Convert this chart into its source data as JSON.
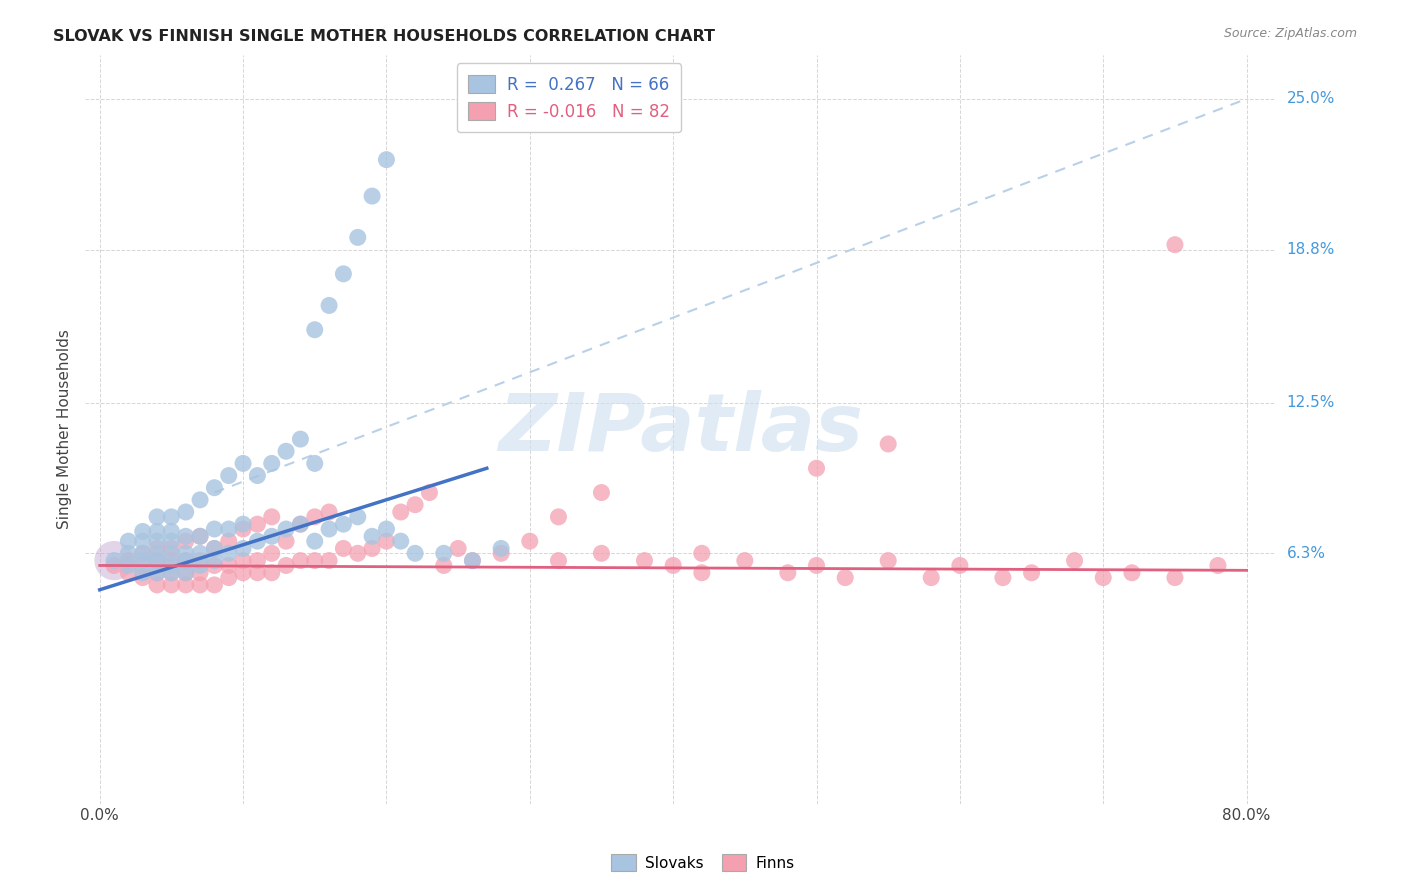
{
  "title": "SLOVAK VS FINNISH SINGLE MOTHER HOUSEHOLDS CORRELATION CHART",
  "source": "Source: ZipAtlas.com",
  "ylabel": "Single Mother Households",
  "ytick_labels": [
    "6.3%",
    "12.5%",
    "18.8%",
    "25.0%"
  ],
  "ytick_values": [
    0.063,
    0.125,
    0.188,
    0.25
  ],
  "xlim": [
    -0.01,
    0.82
  ],
  "ylim": [
    -0.04,
    0.268
  ],
  "legend_slovak": "R =  0.267   N = 66",
  "legend_finn": "R = -0.016   N = 82",
  "slovak_color": "#a8c4e0",
  "finn_color": "#f4a0b0",
  "slovak_line_color": "#4472c4",
  "finn_line_color": "#e06080",
  "dash_line_color": "#b8d0e8",
  "watermark_color": "#ccdff0",
  "sk_x": [
    0.01,
    0.02,
    0.02,
    0.02,
    0.03,
    0.03,
    0.03,
    0.03,
    0.03,
    0.04,
    0.04,
    0.04,
    0.04,
    0.04,
    0.04,
    0.05,
    0.05,
    0.05,
    0.05,
    0.05,
    0.05,
    0.06,
    0.06,
    0.06,
    0.06,
    0.06,
    0.07,
    0.07,
    0.07,
    0.07,
    0.08,
    0.08,
    0.08,
    0.08,
    0.09,
    0.09,
    0.09,
    0.1,
    0.1,
    0.1,
    0.11,
    0.11,
    0.12,
    0.12,
    0.13,
    0.13,
    0.14,
    0.14,
    0.15,
    0.15,
    0.16,
    0.17,
    0.18,
    0.19,
    0.2,
    0.21,
    0.22,
    0.24,
    0.26,
    0.28,
    0.15,
    0.16,
    0.17,
    0.18,
    0.19,
    0.2
  ],
  "sk_y": [
    0.06,
    0.058,
    0.063,
    0.068,
    0.055,
    0.06,
    0.063,
    0.068,
    0.072,
    0.055,
    0.06,
    0.063,
    0.068,
    0.072,
    0.078,
    0.055,
    0.058,
    0.063,
    0.068,
    0.072,
    0.078,
    0.055,
    0.06,
    0.063,
    0.07,
    0.08,
    0.058,
    0.063,
    0.07,
    0.085,
    0.06,
    0.065,
    0.073,
    0.09,
    0.063,
    0.073,
    0.095,
    0.065,
    0.075,
    0.1,
    0.068,
    0.095,
    0.07,
    0.1,
    0.073,
    0.105,
    0.075,
    0.11,
    0.068,
    0.1,
    0.073,
    0.075,
    0.078,
    0.07,
    0.073,
    0.068,
    0.063,
    0.063,
    0.06,
    0.065,
    0.155,
    0.165,
    0.178,
    0.193,
    0.21,
    0.225
  ],
  "fi_x": [
    0.01,
    0.02,
    0.02,
    0.03,
    0.03,
    0.03,
    0.04,
    0.04,
    0.04,
    0.04,
    0.05,
    0.05,
    0.05,
    0.05,
    0.06,
    0.06,
    0.06,
    0.06,
    0.07,
    0.07,
    0.07,
    0.07,
    0.08,
    0.08,
    0.08,
    0.09,
    0.09,
    0.09,
    0.1,
    0.1,
    0.1,
    0.11,
    0.11,
    0.11,
    0.12,
    0.12,
    0.12,
    0.13,
    0.13,
    0.14,
    0.14,
    0.15,
    0.15,
    0.16,
    0.16,
    0.17,
    0.18,
    0.19,
    0.2,
    0.21,
    0.22,
    0.23,
    0.24,
    0.25,
    0.26,
    0.28,
    0.3,
    0.32,
    0.35,
    0.38,
    0.4,
    0.42,
    0.45,
    0.48,
    0.5,
    0.52,
    0.55,
    0.58,
    0.6,
    0.63,
    0.65,
    0.68,
    0.7,
    0.72,
    0.75,
    0.78,
    0.5,
    0.55,
    0.32,
    0.35,
    0.42,
    0.75
  ],
  "fi_y": [
    0.058,
    0.055,
    0.06,
    0.053,
    0.058,
    0.063,
    0.05,
    0.055,
    0.06,
    0.065,
    0.05,
    0.055,
    0.06,
    0.065,
    0.05,
    0.055,
    0.06,
    0.068,
    0.05,
    0.055,
    0.06,
    0.07,
    0.05,
    0.058,
    0.065,
    0.053,
    0.058,
    0.068,
    0.055,
    0.06,
    0.073,
    0.055,
    0.06,
    0.075,
    0.055,
    0.063,
    0.078,
    0.058,
    0.068,
    0.06,
    0.075,
    0.06,
    0.078,
    0.06,
    0.08,
    0.065,
    0.063,
    0.065,
    0.068,
    0.08,
    0.083,
    0.088,
    0.058,
    0.065,
    0.06,
    0.063,
    0.068,
    0.06,
    0.063,
    0.06,
    0.058,
    0.055,
    0.06,
    0.055,
    0.058,
    0.053,
    0.06,
    0.053,
    0.058,
    0.053,
    0.055,
    0.06,
    0.053,
    0.055,
    0.053,
    0.058,
    0.098,
    0.108,
    0.078,
    0.088,
    0.063,
    0.19
  ],
  "sk_line_x": [
    0.0,
    0.27
  ],
  "sk_line_y": [
    0.048,
    0.098
  ],
  "fi_line_x": [
    0.0,
    0.8
  ],
  "fi_line_y": [
    0.058,
    0.056
  ],
  "dash_line_x": [
    0.08,
    0.8
  ],
  "dash_line_y": [
    0.088,
    0.25
  ]
}
